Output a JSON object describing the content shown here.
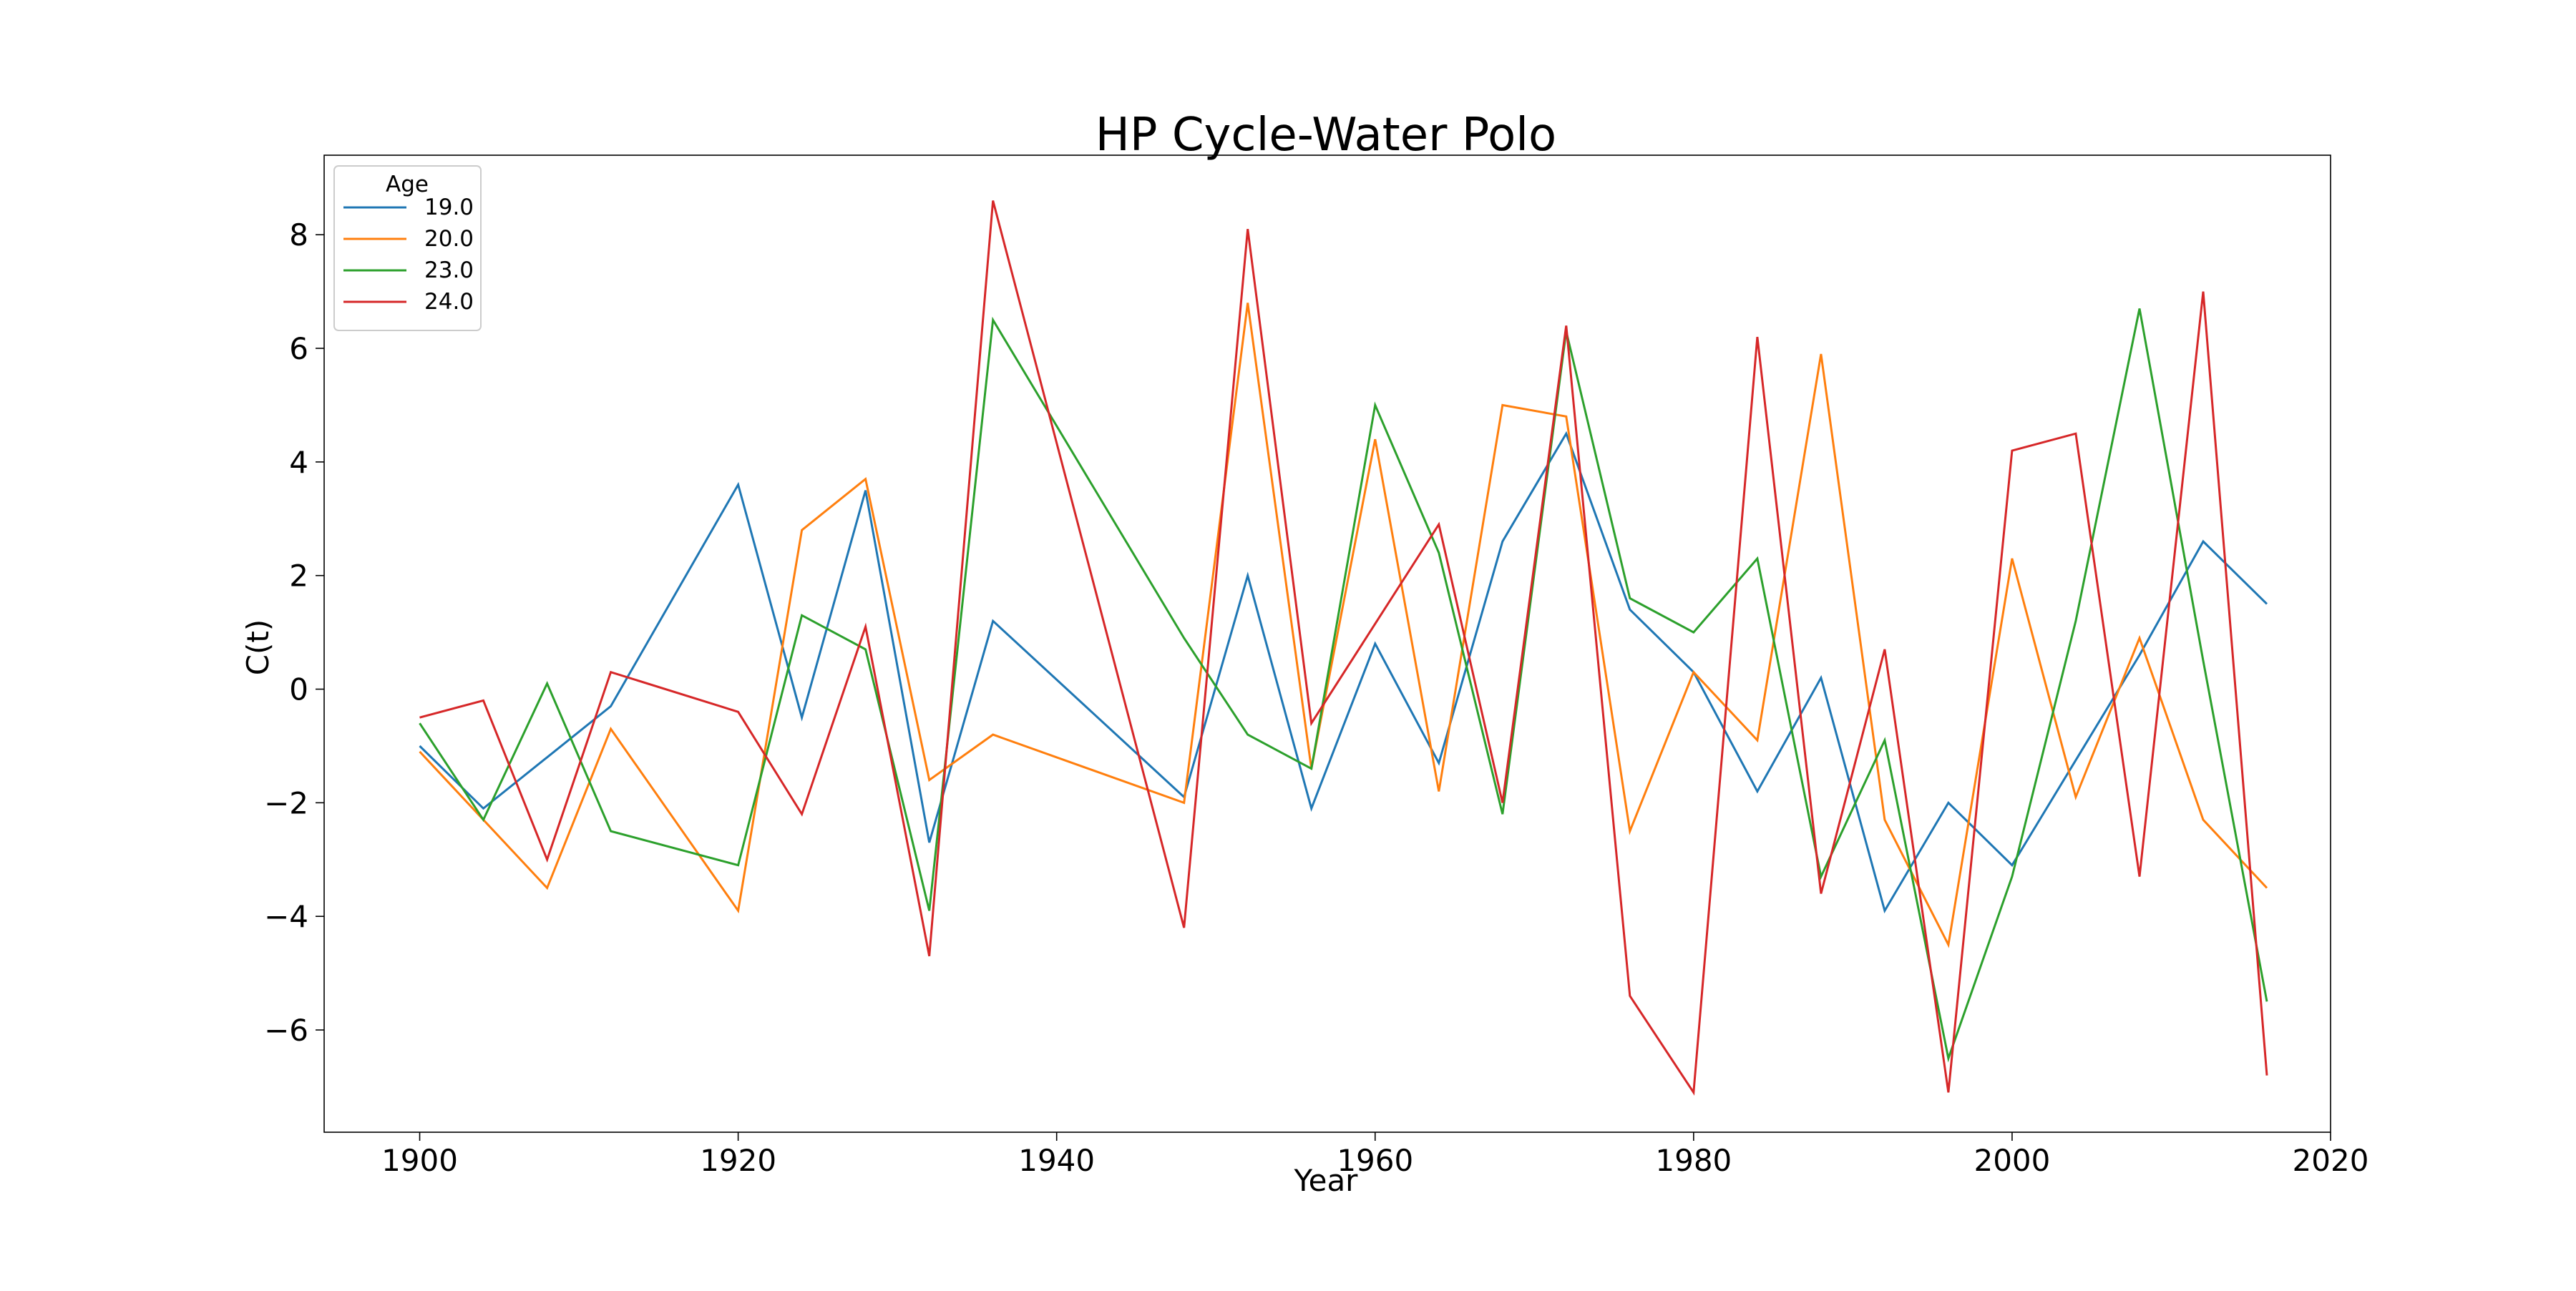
{
  "chart_data": {
    "type": "line",
    "title": "HP Cycle-Water Polo",
    "xlabel": "Year",
    "ylabel": "C(t)",
    "xlim": [
      1894,
      2020
    ],
    "ylim": [
      -7.8,
      9.4
    ],
    "xticks": [
      1900,
      1920,
      1940,
      1960,
      1980,
      2000,
      2020
    ],
    "yticks": [
      -6,
      -4,
      -2,
      0,
      2,
      4,
      6,
      8
    ],
    "grid": false,
    "legend": {
      "title": "Age",
      "placement": "top-left"
    },
    "series": [
      {
        "name": "19.0",
        "color": "#1f77b4",
        "x": [
          1900,
          1904,
          1912,
          1920,
          1924,
          1928,
          1932,
          1936,
          1948,
          1952,
          1956,
          1960,
          1964,
          1968,
          1972,
          1976,
          1980,
          1984,
          1988,
          1992,
          1996,
          2000,
          2008,
          2012,
          2016
        ],
        "y": [
          -1.0,
          -2.1,
          -0.3,
          3.6,
          -0.5,
          3.5,
          -2.7,
          1.2,
          -1.9,
          2.0,
          -2.1,
          0.8,
          -1.3,
          2.6,
          4.5,
          1.4,
          0.3,
          -1.8,
          0.2,
          -3.9,
          -2.0,
          -3.1,
          0.6,
          2.6,
          1.5
        ]
      },
      {
        "name": "20.0",
        "color": "#ff7f0e",
        "x": [
          1900,
          1908,
          1912,
          1920,
          1924,
          1928,
          1932,
          1936,
          1948,
          1952,
          1956,
          1960,
          1964,
          1968,
          1972,
          1976,
          1980,
          1984,
          1988,
          1992,
          1996,
          2000,
          2004,
          2008,
          2012,
          2016
        ],
        "y": [
          -1.1,
          -3.5,
          -0.7,
          -3.9,
          2.8,
          3.7,
          -1.6,
          -0.8,
          -2.0,
          6.8,
          -1.4,
          4.4,
          -1.8,
          5.0,
          4.8,
          -2.5,
          0.3,
          -0.9,
          5.9,
          -2.3,
          -4.5,
          2.3,
          -1.9,
          0.9,
          -2.3,
          -3.5
        ]
      },
      {
        "name": "23.0",
        "color": "#2ca02c",
        "x": [
          1900,
          1904,
          1908,
          1912,
          1920,
          1924,
          1928,
          1932,
          1936,
          1948,
          1952,
          1956,
          1960,
          1964,
          1968,
          1972,
          1976,
          1980,
          1984,
          1988,
          1992,
          1996,
          2000,
          2004,
          2008,
          2012,
          2016
        ],
        "y": [
          -0.6,
          -2.3,
          0.1,
          -2.5,
          -3.1,
          1.3,
          0.7,
          -3.9,
          6.5,
          0.9,
          -0.8,
          -1.4,
          5.0,
          2.4,
          -2.2,
          6.3,
          1.6,
          1.0,
          2.3,
          -3.3,
          -0.9,
          -6.5,
          -3.3,
          1.2,
          6.7,
          0.5,
          -5.5
        ]
      },
      {
        "name": "24.0",
        "color": "#d62728",
        "x": [
          1900,
          1904,
          1908,
          1912,
          1920,
          1924,
          1928,
          1932,
          1936,
          1948,
          1952,
          1956,
          1964,
          1968,
          1972,
          1976,
          1980,
          1984,
          1988,
          1992,
          1996,
          2000,
          2004,
          2008,
          2012,
          2016
        ],
        "y": [
          -0.5,
          -0.2,
          -3.0,
          0.3,
          -0.4,
          -2.2,
          1.1,
          -4.7,
          8.6,
          -4.2,
          8.1,
          -0.6,
          2.9,
          -2.0,
          6.4,
          -5.4,
          -7.1,
          6.2,
          -3.6,
          0.7,
          -7.1,
          4.2,
          4.5,
          -3.3,
          7.0,
          -6.8
        ]
      }
    ]
  }
}
